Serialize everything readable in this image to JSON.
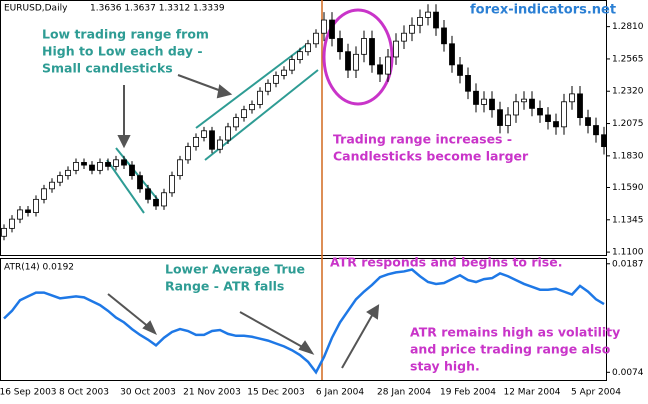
{
  "chart_data": [
    {
      "type": "candlestick",
      "symbol": "EURUSD,Daily",
      "ohlc_text": "1.3636 1.3637 1.3312 1.3339",
      "watermark": "forex-indicators.net",
      "up_color": "#ffffff",
      "down_color": "#000000",
      "open": [
        1.122,
        1.128,
        1.135,
        1.142,
        1.14,
        1.15,
        1.158,
        1.163,
        1.168,
        1.172,
        1.178,
        1.176,
        1.172,
        1.178,
        1.175,
        1.18,
        1.176,
        1.168,
        1.158,
        1.15,
        1.145,
        1.155,
        1.168,
        1.18,
        1.19,
        1.197,
        1.202,
        1.188,
        1.195,
        1.205,
        1.212,
        1.218,
        1.222,
        1.232,
        1.238,
        1.244,
        1.248,
        1.256,
        1.262,
        1.268,
        1.276,
        1.286,
        1.272,
        1.262,
        1.248,
        1.26,
        1.272,
        1.252,
        1.245,
        1.258,
        1.27,
        1.276,
        1.282,
        1.288,
        1.292,
        1.28,
        1.268,
        1.252,
        1.244,
        1.232,
        1.222,
        1.226,
        1.218,
        1.206,
        1.214,
        1.224,
        1.226,
        1.219,
        1.214,
        1.209,
        1.205,
        1.224,
        1.23,
        1.212,
        1.206,
        1.199
      ],
      "high": [
        1.131,
        1.138,
        1.145,
        1.145,
        1.153,
        1.161,
        1.166,
        1.171,
        1.175,
        1.181,
        1.181,
        1.179,
        1.181,
        1.181,
        1.183,
        1.183,
        1.179,
        1.171,
        1.161,
        1.153,
        1.158,
        1.171,
        1.183,
        1.193,
        1.2,
        1.205,
        1.205,
        1.198,
        1.208,
        1.215,
        1.221,
        1.225,
        1.235,
        1.241,
        1.247,
        1.251,
        1.259,
        1.265,
        1.271,
        1.279,
        1.292,
        1.292,
        1.278,
        1.268,
        1.266,
        1.278,
        1.278,
        1.258,
        1.264,
        1.276,
        1.282,
        1.288,
        1.294,
        1.298,
        1.298,
        1.286,
        1.274,
        1.258,
        1.25,
        1.238,
        1.232,
        1.232,
        1.224,
        1.22,
        1.23,
        1.232,
        1.232,
        1.225,
        1.22,
        1.215,
        1.23,
        1.236,
        1.236,
        1.218,
        1.212,
        1.205
      ],
      "low": [
        1.119,
        1.125,
        1.132,
        1.137,
        1.137,
        1.147,
        1.155,
        1.16,
        1.165,
        1.169,
        1.173,
        1.169,
        1.169,
        1.172,
        1.172,
        1.173,
        1.165,
        1.155,
        1.147,
        1.142,
        1.142,
        1.152,
        1.165,
        1.177,
        1.187,
        1.194,
        1.185,
        1.185,
        1.192,
        1.202,
        1.209,
        1.215,
        1.219,
        1.229,
        1.235,
        1.241,
        1.245,
        1.253,
        1.259,
        1.265,
        1.27,
        1.266,
        1.256,
        1.242,
        1.242,
        1.254,
        1.246,
        1.239,
        1.239,
        1.252,
        1.264,
        1.27,
        1.276,
        1.282,
        1.274,
        1.262,
        1.246,
        1.238,
        1.226,
        1.216,
        1.216,
        1.212,
        1.2,
        1.2,
        1.208,
        1.218,
        1.213,
        1.208,
        1.203,
        1.199,
        1.199,
        1.218,
        1.206,
        1.2,
        1.193,
        1.184
      ],
      "close": [
        1.128,
        1.135,
        1.142,
        1.14,
        1.15,
        1.158,
        1.163,
        1.168,
        1.172,
        1.178,
        1.176,
        1.172,
        1.178,
        1.175,
        1.18,
        1.176,
        1.168,
        1.158,
        1.15,
        1.145,
        1.155,
        1.168,
        1.18,
        1.19,
        1.197,
        1.202,
        1.188,
        1.195,
        1.205,
        1.212,
        1.218,
        1.222,
        1.232,
        1.238,
        1.244,
        1.248,
        1.256,
        1.262,
        1.268,
        1.276,
        1.286,
        1.272,
        1.262,
        1.248,
        1.26,
        1.272,
        1.252,
        1.245,
        1.258,
        1.27,
        1.276,
        1.282,
        1.288,
        1.292,
        1.28,
        1.268,
        1.252,
        1.244,
        1.232,
        1.222,
        1.226,
        1.218,
        1.206,
        1.214,
        1.224,
        1.226,
        1.219,
        1.214,
        1.209,
        1.205,
        1.224,
        1.23,
        1.212,
        1.206,
        1.199,
        1.19
      ],
      "ylim": [
        1.1078,
        1.3012
      ],
      "yticks": [
        {
          "value": 1.281,
          "label": "1.2810"
        },
        1.2565,
        {
          "value": 1.232,
          "label": "1.2320"
        },
        1.2075,
        {
          "value": 1.183,
          "label": "1.1830"
        },
        {
          "value": 1.159,
          "label": "1.1590"
        },
        1.1345,
        {
          "value": 1.11,
          "label": "1.1100"
        }
      ],
      "annotations": [
        [
          "Low trading range from",
          "High to Low each day -",
          "Small candlesticks"
        ],
        [
          "Trading range increases -",
          "Candlesticks become larger"
        ]
      ]
    },
    {
      "type": "line",
      "title": "ATR(14) 0.0192",
      "color": "#1e78e6",
      "categories": [
        null,
        null,
        null,
        "16 Sep 2003",
        null,
        null,
        null,
        null,
        null,
        null,
        "8 Oct 2003",
        null,
        null,
        null,
        null,
        null,
        null,
        null,
        "30 Oct 2003",
        null,
        null,
        null,
        null,
        null,
        null,
        null,
        "21 Nov 2003",
        null,
        null,
        null,
        null,
        null,
        null,
        null,
        "15 Dec 2003",
        null,
        null,
        null,
        null,
        null,
        null,
        null,
        "6 Jan 2004",
        null,
        null,
        null,
        null,
        null,
        null,
        null,
        "28 Jan 2004",
        null,
        null,
        null,
        null,
        null,
        null,
        null,
        "19 Feb 2004",
        null,
        null,
        null,
        null,
        null,
        null,
        null,
        "12 Mar 2004",
        null,
        null,
        null,
        null,
        null,
        null,
        null,
        "5 Apr 2004",
        null
      ],
      "values": [
        0.013,
        0.0138,
        0.0149,
        0.0153,
        0.0157,
        0.0157,
        0.0154,
        0.0151,
        0.0152,
        0.0153,
        0.0152,
        0.0148,
        0.0144,
        0.0138,
        0.0131,
        0.0126,
        0.0119,
        0.0113,
        0.0108,
        0.0102,
        0.011,
        0.0116,
        0.0119,
        0.0117,
        0.0113,
        0.0113,
        0.0117,
        0.0118,
        0.0114,
        0.0112,
        0.0112,
        0.0111,
        0.0109,
        0.0107,
        0.0104,
        0.0101,
        0.0097,
        0.0092,
        0.0085,
        0.0074,
        0.009,
        0.011,
        0.0126,
        0.0138,
        0.015,
        0.0158,
        0.0165,
        0.0173,
        0.0176,
        0.0178,
        0.0179,
        0.0181,
        0.0174,
        0.0168,
        0.0166,
        0.0167,
        0.0171,
        0.0175,
        0.017,
        0.0168,
        0.0171,
        0.0172,
        0.0177,
        0.0174,
        0.017,
        0.0166,
        0.0163,
        0.016,
        0.016,
        0.0161,
        0.0158,
        0.0155,
        0.0164,
        0.0158,
        0.015,
        0.0145
      ],
      "ylim": [
        0.0066,
        0.0193
      ],
      "yticks": [
        0.0187,
        0.0074
      ],
      "annotations": [
        [
          "Lower Average True",
          "Range - ATR falls"
        ],
        [
          "ATR responds and begins to rise."
        ],
        [
          "ATR remains high as volatility",
          "and price trading range also",
          "stay high."
        ]
      ]
    }
  ]
}
